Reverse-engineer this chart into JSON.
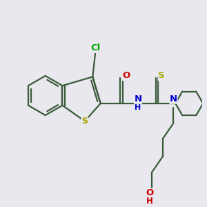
{
  "background_color": "#e8e8ee",
  "figsize": [
    3.0,
    3.0
  ],
  "dpi": 100,
  "bond_color": "#3a5a3a",
  "bond_lw": 1.6,
  "atom_colors": {
    "S": "#aaaa00",
    "N": "#0000cc",
    "O": "#cc0000",
    "Cl": "#00aa00",
    "C": "#3a5a3a"
  }
}
